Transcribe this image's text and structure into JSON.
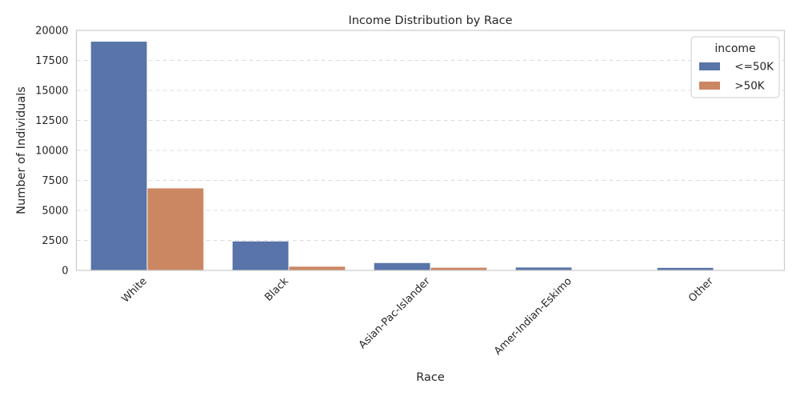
{
  "chart_data": {
    "type": "bar",
    "title": "Income Distribution by Race",
    "xlabel": "Race",
    "ylabel": "Number of Individuals",
    "categories": [
      "White",
      "Black",
      "Asian-Pac-Islander",
      "Amer-Indian-Eskimo",
      "Other"
    ],
    "series": [
      {
        "name": " <=50K",
        "color": "#5874a8",
        "values": [
          19094,
          2451,
          647,
          275,
          246
        ]
      },
      {
        "name": " >50K",
        "color": "#cb8662",
        "values": [
          6870,
          345,
          260,
          35,
          25
        ]
      }
    ],
    "ylim": [
      0,
      20000
    ],
    "yticks": [
      0,
      2500,
      5000,
      7500,
      10000,
      12500,
      15000,
      17500,
      20000
    ],
    "grid": "y, dashed",
    "legend": {
      "title": "income",
      "placement": "top-right"
    }
  }
}
